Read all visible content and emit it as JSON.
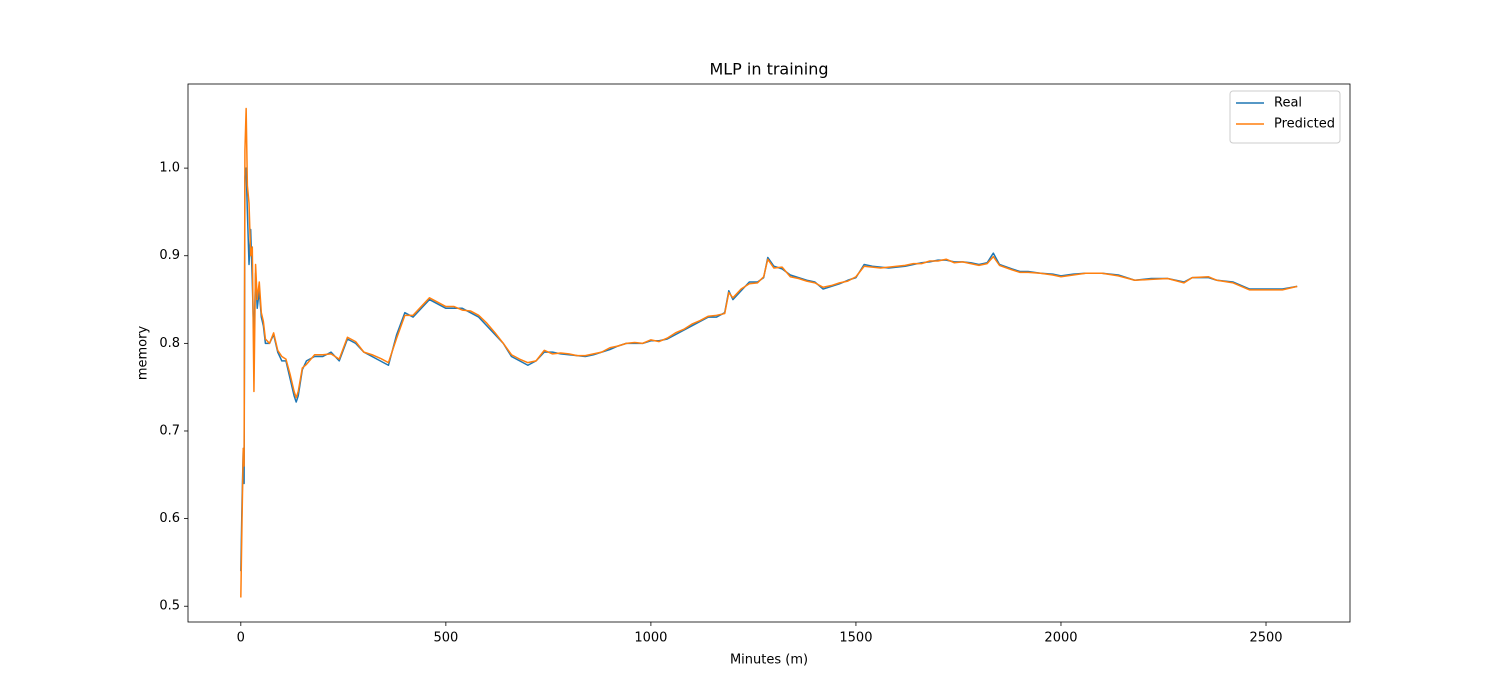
{
  "chart_data": {
    "type": "line",
    "title": "MLP in training",
    "xlabel": "Minutes (m)",
    "ylabel": "memory",
    "x": [
      0,
      3,
      6,
      8,
      10,
      13,
      16,
      20,
      24,
      28,
      32,
      36,
      40,
      45,
      50,
      55,
      60,
      70,
      80,
      90,
      100,
      110,
      120,
      130,
      135,
      140,
      150,
      160,
      180,
      200,
      220,
      240,
      260,
      280,
      300,
      320,
      340,
      360,
      380,
      400,
      420,
      440,
      460,
      480,
      500,
      520,
      540,
      560,
      580,
      600,
      620,
      640,
      660,
      680,
      700,
      720,
      740,
      760,
      780,
      800,
      820,
      840,
      860,
      880,
      900,
      920,
      940,
      960,
      980,
      1000,
      1020,
      1040,
      1060,
      1080,
      1100,
      1120,
      1140,
      1160,
      1180,
      1190,
      1200,
      1220,
      1240,
      1260,
      1275,
      1285,
      1300,
      1320,
      1340,
      1360,
      1380,
      1400,
      1420,
      1440,
      1460,
      1480,
      1500,
      1520,
      1540,
      1560,
      1580,
      1600,
      1620,
      1640,
      1660,
      1680,
      1700,
      1720,
      1740,
      1760,
      1780,
      1800,
      1820,
      1835,
      1850,
      1880,
      1900,
      1920,
      1950,
      1980,
      2000,
      2030,
      2060,
      2100,
      2140,
      2180,
      2220,
      2260,
      2300,
      2320,
      2360,
      2380,
      2420,
      2460,
      2500,
      2540,
      2576
    ],
    "series": [
      {
        "name": "Real",
        "color": "#1f77b4",
        "values": [
          0.54,
          0.62,
          0.68,
          0.64,
          0.99,
          1.0,
          0.95,
          0.89,
          0.93,
          0.87,
          0.8,
          0.88,
          0.84,
          0.86,
          0.83,
          0.82,
          0.8,
          0.8,
          0.81,
          0.79,
          0.78,
          0.78,
          0.76,
          0.74,
          0.733,
          0.74,
          0.77,
          0.78,
          0.785,
          0.785,
          0.79,
          0.78,
          0.805,
          0.8,
          0.79,
          0.785,
          0.78,
          0.775,
          0.81,
          0.835,
          0.83,
          0.84,
          0.85,
          0.845,
          0.84,
          0.84,
          0.84,
          0.835,
          0.83,
          0.82,
          0.81,
          0.8,
          0.785,
          0.78,
          0.775,
          0.78,
          0.79,
          0.79,
          0.788,
          0.787,
          0.786,
          0.785,
          0.787,
          0.79,
          0.793,
          0.797,
          0.8,
          0.8,
          0.8,
          0.803,
          0.803,
          0.805,
          0.81,
          0.815,
          0.82,
          0.825,
          0.83,
          0.83,
          0.835,
          0.86,
          0.85,
          0.86,
          0.87,
          0.87,
          0.875,
          0.898,
          0.888,
          0.885,
          0.878,
          0.875,
          0.872,
          0.87,
          0.862,
          0.865,
          0.868,
          0.872,
          0.875,
          0.89,
          0.888,
          0.887,
          0.886,
          0.887,
          0.888,
          0.89,
          0.892,
          0.893,
          0.895,
          0.895,
          0.893,
          0.893,
          0.892,
          0.89,
          0.892,
          0.903,
          0.89,
          0.885,
          0.882,
          0.882,
          0.88,
          0.879,
          0.877,
          0.879,
          0.88,
          0.88,
          0.878,
          0.872,
          0.874,
          0.874,
          0.87,
          0.875,
          0.875,
          0.872,
          0.87,
          0.862,
          0.862,
          0.862,
          0.865
        ]
      },
      {
        "name": "Predicted",
        "color": "#ff7f0e",
        "values": [
          0.51,
          0.6,
          0.68,
          0.66,
          1.02,
          1.068,
          0.98,
          0.96,
          0.9,
          0.91,
          0.745,
          0.89,
          0.85,
          0.87,
          0.835,
          0.825,
          0.805,
          0.8,
          0.812,
          0.792,
          0.785,
          0.782,
          0.765,
          0.745,
          0.738,
          0.745,
          0.772,
          0.776,
          0.787,
          0.787,
          0.788,
          0.782,
          0.807,
          0.802,
          0.79,
          0.787,
          0.783,
          0.778,
          0.806,
          0.832,
          0.832,
          0.842,
          0.852,
          0.847,
          0.842,
          0.842,
          0.838,
          0.837,
          0.832,
          0.823,
          0.812,
          0.8,
          0.787,
          0.782,
          0.778,
          0.78,
          0.792,
          0.788,
          0.789,
          0.788,
          0.786,
          0.786,
          0.788,
          0.79,
          0.795,
          0.797,
          0.8,
          0.801,
          0.8,
          0.804,
          0.802,
          0.806,
          0.812,
          0.816,
          0.822,
          0.826,
          0.831,
          0.832,
          0.834,
          0.858,
          0.852,
          0.862,
          0.868,
          0.869,
          0.876,
          0.896,
          0.886,
          0.887,
          0.876,
          0.874,
          0.871,
          0.869,
          0.864,
          0.866,
          0.869,
          0.871,
          0.876,
          0.888,
          0.887,
          0.886,
          0.887,
          0.888,
          0.889,
          0.891,
          0.891,
          0.894,
          0.894,
          0.896,
          0.892,
          0.893,
          0.891,
          0.889,
          0.891,
          0.899,
          0.889,
          0.884,
          0.881,
          0.881,
          0.88,
          0.878,
          0.876,
          0.878,
          0.88,
          0.88,
          0.877,
          0.872,
          0.873,
          0.874,
          0.869,
          0.875,
          0.876,
          0.872,
          0.869,
          0.861,
          0.861,
          0.861,
          0.865
        ]
      }
    ],
    "xlim": [
      -128.8,
      2704.8
    ],
    "ylim": [
      0.482,
      1.096
    ],
    "xticks": [
      0,
      500,
      1000,
      1500,
      2000,
      2500
    ],
    "yticks": [
      0.5,
      0.6,
      0.7,
      0.8,
      0.9,
      {
        "value": 1.0,
        "label": "1.0"
      }
    ],
    "legend": "upper right",
    "grid": false
  }
}
